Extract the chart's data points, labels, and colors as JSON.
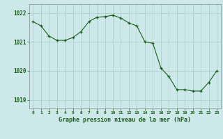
{
  "x": [
    0,
    1,
    2,
    3,
    4,
    5,
    6,
    7,
    8,
    9,
    10,
    11,
    12,
    13,
    14,
    15,
    16,
    17,
    18,
    19,
    20,
    21,
    22,
    23
  ],
  "y": [
    1021.7,
    1021.55,
    1021.2,
    1021.05,
    1021.05,
    1021.15,
    1021.35,
    1021.7,
    1021.85,
    1021.87,
    1021.92,
    1021.82,
    1021.65,
    1021.55,
    1021.0,
    1020.95,
    1020.1,
    1019.8,
    1019.35,
    1019.35,
    1019.3,
    1019.3,
    1019.6,
    1020.0
  ],
  "bg_color": "#cce8e8",
  "line_color": "#1a5c1a",
  "marker_color": "#1a5c1a",
  "grid_color": "#aacccc",
  "axis_label_color": "#1a5c1a",
  "tick_label_color": "#1a5c1a",
  "xlabel": "Graphe pression niveau de la mer (hPa)",
  "yticks": [
    1019,
    1020,
    1021,
    1022
  ],
  "xticks": [
    0,
    1,
    2,
    3,
    4,
    5,
    6,
    7,
    8,
    9,
    10,
    11,
    12,
    13,
    14,
    15,
    16,
    17,
    18,
    19,
    20,
    21,
    22,
    23
  ],
  "ylim": [
    1018.7,
    1022.3
  ],
  "xlim": [
    -0.5,
    23.5
  ],
  "fig_width": 3.2,
  "fig_height": 2.0,
  "dpi": 100
}
